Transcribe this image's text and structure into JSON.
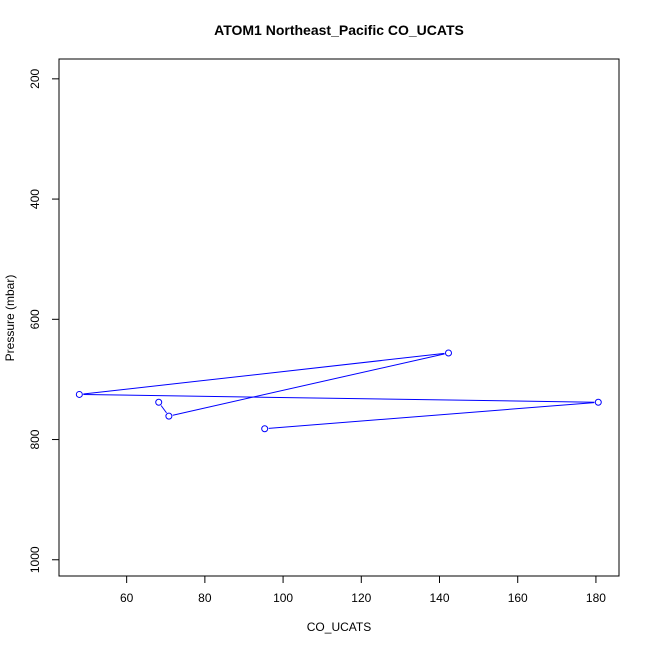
{
  "chart_data": {
    "type": "line",
    "title": "ATOM1 Northeast_Pacific CO_UCATS",
    "xlabel": "CO_UCATS",
    "ylabel": "Pressure (mbar)",
    "xlim": [
      42.7,
      185.9
    ],
    "ylim": [
      1027,
      167
    ],
    "y_axis_reversed": true,
    "grid": false,
    "x_ticks": [
      60,
      80,
      100,
      120,
      140,
      160,
      180
    ],
    "y_ticks": [
      200,
      400,
      600,
      800,
      1000
    ],
    "series": [
      {
        "color": "#0000ff",
        "marker": "open-circle",
        "x": [
          95.3,
          180.6,
          47.9,
          142.3,
          70.8,
          68.2
        ],
        "y": [
          782,
          738,
          725,
          656,
          761,
          738
        ]
      }
    ]
  }
}
